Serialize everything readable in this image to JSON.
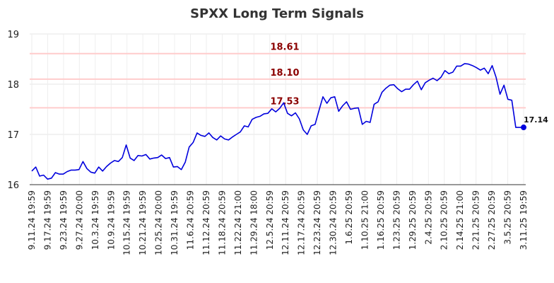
{
  "chart_data": {
    "type": "line",
    "title": "SPXX Long Term Signals",
    "xlabel": "",
    "ylabel": "",
    "ylim": [
      16,
      19
    ],
    "y_ticks": [
      "16",
      "17",
      "18",
      "19"
    ],
    "x_tick_labels": [
      "9.11.24 19:59",
      "9.17.24 19:59",
      "9.23.24 19:59",
      "9.27.24 20:00",
      "10.3.24 19:59",
      "10.9.24 19:59",
      "10.15.24 19:59",
      "10.21.24 19:59",
      "10.25.24 20:00",
      "10.31.24 19:59",
      "11.6.24 20:59",
      "11.12.24 20:59",
      "11.18.24 20:59",
      "11.22.24 21:00",
      "11.29.24 18:00",
      "12.5.24 20:59",
      "12.11.24 20:59",
      "12.17.24 20:59",
      "12.23.24 20:59",
      "12.30.24 20:59",
      "1.6.25 20:59",
      "1.10.25 21:00",
      "1.16.25 20:59",
      "1.23.25 20:59",
      "1.29.25 20:59",
      "2.4.25 20:59",
      "2.10.25 20:59",
      "2.14.25 21:00",
      "2.21.25 20:59",
      "2.27.25 20:59",
      "3.5.25 20:59",
      "3.11.25 19:59"
    ],
    "levels": [
      {
        "value": 18.61,
        "label": "18.61",
        "color": "#ffcccc"
      },
      {
        "value": 18.1,
        "label": "18.10",
        "color": "#ffcccc"
      },
      {
        "value": 17.53,
        "label": "17.53",
        "color": "#ffcccc"
      }
    ],
    "series": [
      {
        "color": "#0000dd",
        "values": [
          16.27,
          16.35,
          16.17,
          16.19,
          16.11,
          16.13,
          16.24,
          16.21,
          16.21,
          16.26,
          16.29,
          16.29,
          16.3,
          16.46,
          16.32,
          16.25,
          16.23,
          16.35,
          16.27,
          16.36,
          16.43,
          16.48,
          16.46,
          16.54,
          16.79,
          16.53,
          16.48,
          16.58,
          16.57,
          16.6,
          16.51,
          16.53,
          16.54,
          16.59,
          16.52,
          16.54,
          16.35,
          16.36,
          16.3,
          16.45,
          16.75,
          16.84,
          17.03,
          16.98,
          16.96,
          17.03,
          16.94,
          16.89,
          16.97,
          16.91,
          16.89,
          16.95,
          17.0,
          17.05,
          17.17,
          17.15,
          17.3,
          17.34,
          17.36,
          17.41,
          17.42,
          17.51,
          17.45,
          17.52,
          17.63,
          17.42,
          17.37,
          17.43,
          17.31,
          17.09,
          17.0,
          17.17,
          17.2,
          17.48,
          17.75,
          17.62,
          17.73,
          17.75,
          17.46,
          17.57,
          17.65,
          17.5,
          17.52,
          17.53,
          17.2,
          17.26,
          17.24,
          17.6,
          17.65,
          17.84,
          17.92,
          17.98,
          17.99,
          17.91,
          17.85,
          17.9,
          17.9,
          17.99,
          18.06,
          17.89,
          18.03,
          18.08,
          18.12,
          18.07,
          18.14,
          18.27,
          18.21,
          18.24,
          18.36,
          18.36,
          18.41,
          18.4,
          18.37,
          18.33,
          18.28,
          18.32,
          18.21,
          18.37,
          18.14,
          17.8,
          17.98,
          17.7,
          17.68,
          17.14,
          17.14,
          17.14
        ]
      }
    ],
    "last_value_label": "17.14",
    "grid": true,
    "legend": "none"
  }
}
